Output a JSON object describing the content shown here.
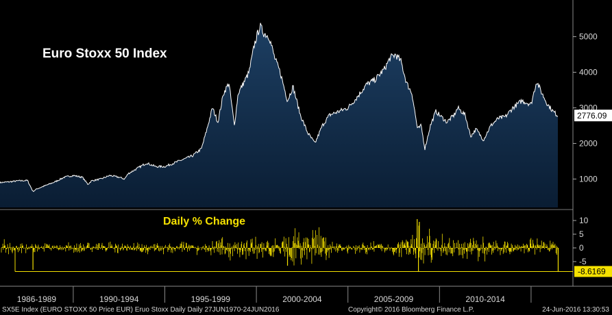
{
  "chart_data": [
    {
      "type": "area",
      "title": "Euro Stoxx 50 Index",
      "ylim": [
        200,
        5800
      ],
      "yticks": [
        1000,
        2000,
        3000,
        4000,
        5000
      ],
      "last_value_label": "2776.09",
      "colors": {
        "fill_top": "#1d3f63",
        "fill_bottom": "#0a1d33",
        "line": "#ffffff"
      },
      "x": [
        1986.0,
        1986.5,
        1987.0,
        1987.5,
        1987.8,
        1988.0,
        1988.5,
        1989.0,
        1989.5,
        1990.0,
        1990.5,
        1990.8,
        1991.0,
        1991.5,
        1992.0,
        1992.5,
        1992.8,
        1993.0,
        1993.5,
        1994.0,
        1994.5,
        1995.0,
        1995.5,
        1996.0,
        1996.5,
        1997.0,
        1997.3,
        1997.6,
        1997.9,
        1998.2,
        1998.5,
        1998.8,
        1999.0,
        1999.3,
        1999.6,
        1999.9,
        2000.2,
        2000.4,
        2000.7,
        2001.0,
        2001.3,
        2001.7,
        2002.0,
        2002.4,
        2002.8,
        2003.2,
        2003.6,
        2004.0,
        2004.5,
        2005.0,
        2005.5,
        2006.0,
        2006.5,
        2007.0,
        2007.3,
        2007.6,
        2007.9,
        2008.2,
        2008.5,
        2008.8,
        2009.0,
        2009.2,
        2009.5,
        2009.8,
        2010.0,
        2010.4,
        2010.8,
        2011.0,
        2011.4,
        2011.7,
        2012.0,
        2012.4,
        2012.8,
        2013.2,
        2013.6,
        2014.0,
        2014.5,
        2015.0,
        2015.3,
        2015.6,
        2015.9,
        2016.2,
        2016.48
      ],
      "values": [
        900,
        920,
        950,
        960,
        650,
        720,
        820,
        920,
        1050,
        1100,
        1050,
        850,
        950,
        1000,
        1100,
        1050,
        1000,
        1150,
        1300,
        1450,
        1350,
        1350,
        1450,
        1550,
        1650,
        1850,
        2400,
        3000,
        2600,
        3400,
        3700,
        2500,
        3400,
        3700,
        4000,
        4800,
        5300,
        5100,
        5000,
        4400,
        4000,
        3200,
        3600,
        2800,
        2300,
        2000,
        2500,
        2800,
        2900,
        3000,
        3300,
        3650,
        3800,
        4100,
        4400,
        4500,
        4300,
        3700,
        3400,
        2400,
        2500,
        1850,
        2500,
        2900,
        2800,
        2600,
        2800,
        3000,
        2800,
        2200,
        2400,
        2100,
        2500,
        2700,
        2750,
        3000,
        3200,
        3100,
        3750,
        3400,
        3100,
        2900,
        2776
      ]
    },
    {
      "type": "bar",
      "title": "Daily % Change",
      "ylim": [
        -10,
        13
      ],
      "yticks": [
        10,
        5,
        0,
        -5
      ],
      "last_value_label": "-8.6169",
      "colors": {
        "bars": "#f5e100",
        "title": "#f5e100"
      }
    },
    {
      "type": "axis",
      "x_range": [
        1986.0,
        2016.5
      ],
      "period_labels": [
        "1986-1989",
        "1990-1994",
        "1995-1999",
        "2000-2004",
        "2005-2009",
        "2010-2014"
      ],
      "period_starts": [
        1986,
        1990,
        1995,
        2000,
        2005,
        2010
      ],
      "period_ends": [
        1990,
        1995,
        2000,
        2005,
        2010,
        2015
      ]
    }
  ],
  "footer": {
    "left": "SX5E Index (EURO STOXX 50 Price EUR) Eruo Stoxx Daily  Daily 27JUN1970-24JUN2016",
    "center": "Copyright© 2016 Bloomberg Finance L.P.",
    "right": "24-Jun-2016 13:30:53"
  }
}
